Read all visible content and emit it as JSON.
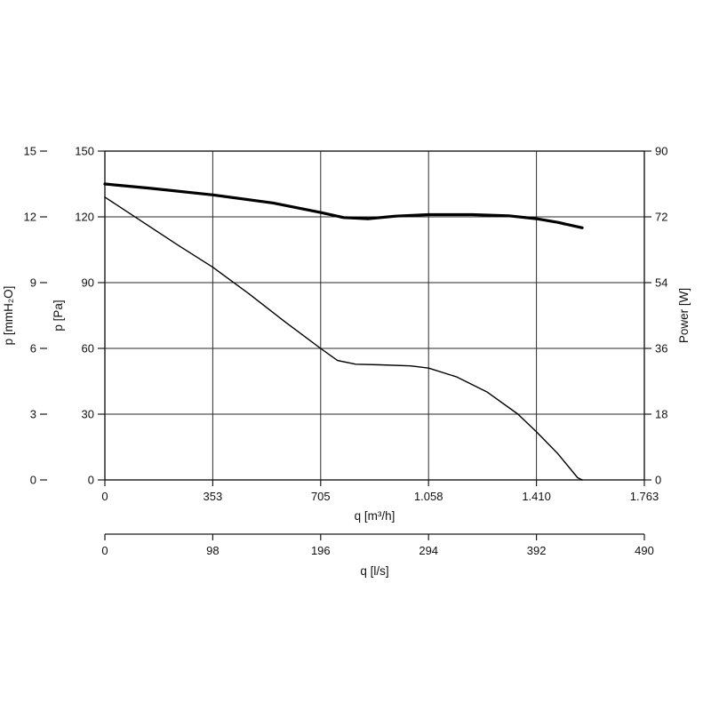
{
  "page": {
    "background": "#ffffff"
  },
  "chart_data": {
    "type": "line",
    "title": "",
    "grid": true,
    "legend": "none",
    "colors": {
      "line": "#000000",
      "grid": "#2a2a2a",
      "frame": "#1a1a1a",
      "text": "#111111"
    },
    "axes": {
      "y_left_outer": {
        "label": "p [mmH₂O]",
        "ticks": [
          "0",
          "3",
          "6",
          "9",
          "12",
          "15"
        ],
        "range": [
          0,
          15
        ]
      },
      "y_left_inner": {
        "label": "p [Pa]",
        "ticks": [
          "0",
          "30",
          "60",
          "90",
          "120",
          "150"
        ],
        "range": [
          0,
          150
        ]
      },
      "y_right": {
        "label": "Power [W]",
        "ticks": [
          "0",
          "18",
          "36",
          "54",
          "72",
          "90"
        ],
        "range": [
          0,
          90
        ]
      },
      "x_primary": {
        "label": "q [m³/h]",
        "ticks": [
          "0",
          "353",
          "705",
          "1.058",
          "1.410",
          "1.763"
        ],
        "range": [
          0,
          1763
        ]
      },
      "x_secondary": {
        "label": "q [l/s]",
        "ticks": [
          "0",
          "98",
          "196",
          "294",
          "392",
          "490"
        ],
        "range": [
          0,
          490
        ]
      }
    },
    "series": [
      {
        "name": "pressure-curve",
        "y_axis": "y_left_inner",
        "stroke_width": 1.4,
        "points": [
          [
            0,
            129
          ],
          [
            120,
            118
          ],
          [
            240,
            107
          ],
          [
            353,
            97
          ],
          [
            470,
            85
          ],
          [
            590,
            72
          ],
          [
            705,
            60
          ],
          [
            760,
            54.5
          ],
          [
            820,
            52.8
          ],
          [
            900,
            52.5
          ],
          [
            1000,
            52
          ],
          [
            1058,
            51
          ],
          [
            1150,
            47
          ],
          [
            1250,
            40
          ],
          [
            1350,
            30
          ],
          [
            1410,
            22
          ],
          [
            1480,
            12
          ],
          [
            1545,
            1
          ],
          [
            1560,
            0
          ]
        ]
      },
      {
        "name": "power-curve",
        "y_axis": "y_right",
        "stroke_width": 3.2,
        "points": [
          [
            0,
            81
          ],
          [
            150,
            79.8
          ],
          [
            353,
            78
          ],
          [
            550,
            75.8
          ],
          [
            705,
            73.2
          ],
          [
            780,
            71.8
          ],
          [
            860,
            71.5
          ],
          [
            950,
            72.2
          ],
          [
            1058,
            72.6
          ],
          [
            1200,
            72.6
          ],
          [
            1320,
            72.3
          ],
          [
            1410,
            71.5
          ],
          [
            1480,
            70.5
          ],
          [
            1560,
            69
          ]
        ]
      }
    ]
  }
}
